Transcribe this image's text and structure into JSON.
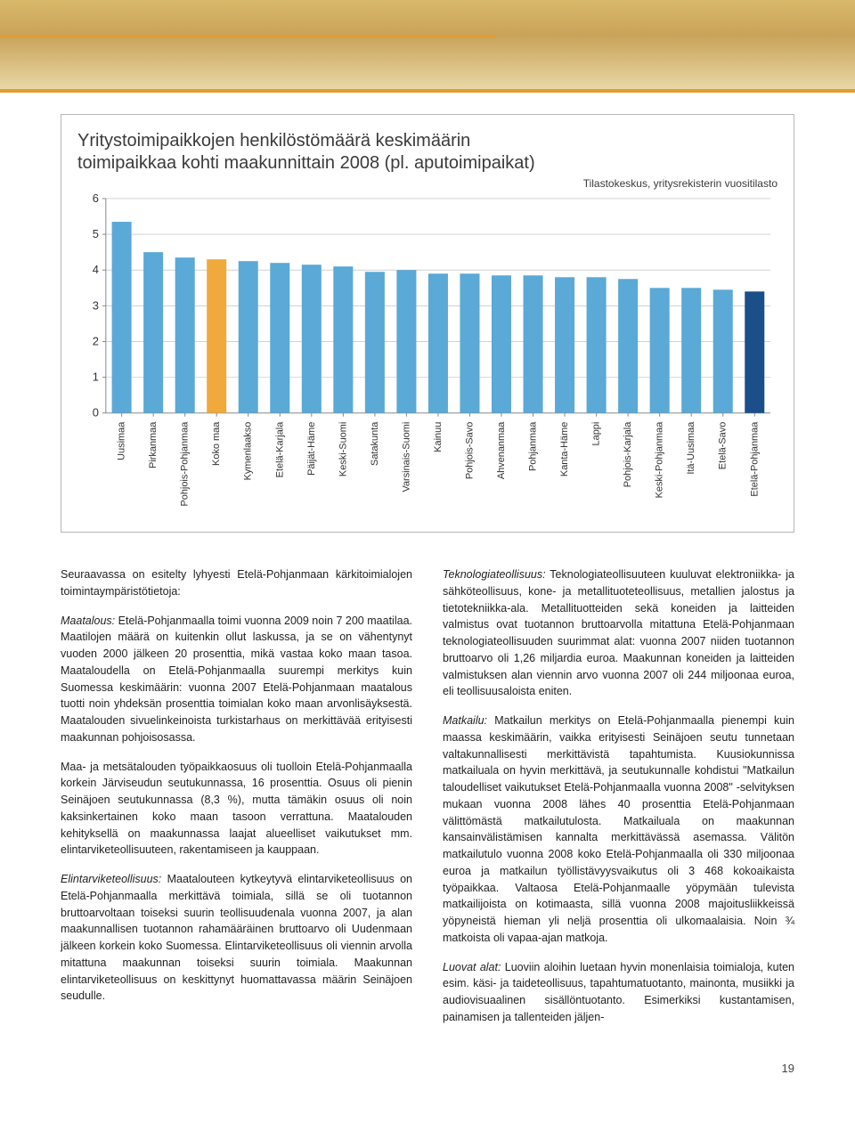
{
  "chart": {
    "type": "bar",
    "title_line1": "Yritystoimipaikkojen henkilöstömäärä keskimäärin",
    "title_line2": "toimipaikkaa kohti maakunnittain 2008 (pl. aputoimipaikat)",
    "source": "Tilastokeskus, yritysrekisterin vuositilasto",
    "ylim": [
      0,
      6
    ],
    "ytick_step": 1,
    "categories": [
      "Uusimaa",
      "Pirkanmaa",
      "Pohjois-Pohjanmaa",
      "Koko maa",
      "Kymenlaakso",
      "Etelä-Karjala",
      "Päijät-Häme",
      "Keski-Suomi",
      "Satakunta",
      "Varsinais-Suomi",
      "Kainuu",
      "Pohjois-Savo",
      "Ahvenanmaa",
      "Pohjanmaa",
      "Kanta-Häme",
      "Lappi",
      "Pohjois-Karjala",
      "Keski-Pohjanmaa",
      "Itä-Uusimaa",
      "Etelä-Savo",
      "Etelä-Pohjanmaa"
    ],
    "values": [
      5.35,
      4.5,
      4.35,
      4.3,
      4.25,
      4.2,
      4.15,
      4.1,
      3.95,
      4.0,
      3.9,
      3.9,
      3.85,
      3.85,
      3.8,
      3.8,
      3.75,
      3.5,
      3.5,
      3.45,
      3.4
    ],
    "bar_colors": [
      "#5aa9d6",
      "#5aa9d6",
      "#5aa9d6",
      "#f0a93c",
      "#5aa9d6",
      "#5aa9d6",
      "#5aa9d6",
      "#5aa9d6",
      "#5aa9d6",
      "#5aa9d6",
      "#5aa9d6",
      "#5aa9d6",
      "#5aa9d6",
      "#5aa9d6",
      "#5aa9d6",
      "#5aa9d6",
      "#5aa9d6",
      "#5aa9d6",
      "#5aa9d6",
      "#5aa9d6",
      "#1a4f8a"
    ],
    "grid_color": "#b7b7b7",
    "axis_color": "#888",
    "background": "#ffffff",
    "bar_width_ratio": 0.62,
    "title_fontsize": 20,
    "label_fontsize": 11
  },
  "text": {
    "left": [
      {
        "html": "Seuraavassa on esitelty lyhyesti Etelä-Pohjanmaan kärkitoimialojen toimintaympäristötietoja:"
      },
      {
        "html": "<em>Maatalous:</em> Etelä-Pohjanmaalla toimi vuonna 2009 noin 7 200 maatilaa. Maatilojen määrä on kuitenkin ollut laskussa, ja se on vähentynyt vuoden 2000 jälkeen 20 prosenttia, mikä vastaa koko maan tasoa. Maataloudella on Etelä-Pohjanmaalla suurempi merkitys kuin Suomessa keskimäärin: vuonna 2007 Etelä-Pohjanmaan maatalous tuotti noin yhdeksän prosenttia toimialan koko maan arvonlisäyksestä. Maatalouden sivuelinkeinoista turkistarhaus on merkittävää erityisesti maakunnan pohjoisosassa."
      },
      {
        "html": "Maa- ja metsätalouden työpaikkaosuus oli tuolloin Etelä-Pohjanmaalla korkein Järviseudun seutukunnassa, 16 prosenttia. Osuus oli pienin Seinäjoen seutukunnassa (8,3 %), mutta tämäkin osuus oli noin kaksinkertainen koko maan tasoon verrattuna. Maatalouden kehityksellä on maakunnassa laajat alueelliset vaikutukset mm. elintarviketeollisuuteen, rakentamiseen ja kauppaan."
      },
      {
        "html": "<em>Elintarviketeollisuus:</em> Maatalouteen kytkeytyvä elintarviketeollisuus on Etelä-Pohjanmaalla merkittävä toimiala, sillä se oli tuotannon bruttoarvoltaan toiseksi suurin teollisuudenala vuonna 2007, ja alan maakunnallisen tuotannon rahamääräinen bruttoarvo oli Uudenmaan jälkeen korkein koko Suomessa. Elintarviketeollisuus oli viennin arvolla mitattuna maakunnan toiseksi suurin toimiala. Maakunnan elintarviketeollisuus on keskittynyt huomattavassa määrin Seinäjoen seudulle."
      }
    ],
    "right": [
      {
        "html": "<em>Teknologiateollisuus:</em> Teknologiateollisuuteen kuuluvat elektroniikka- ja sähköteollisuus, kone- ja metallituoteteollisuus, metallien jalostus ja tietotekniikka-ala. Metallituotteiden sekä koneiden ja laitteiden valmistus ovat tuotannon bruttoarvolla mitattuna Etelä-Pohjanmaan teknologiateollisuuden suurimmat alat: vuonna 2007 niiden tuotannon bruttoarvo oli 1,26 miljardia euroa. Maakunnan koneiden ja laitteiden valmistuksen alan viennin arvo vuonna 2007 oli 244 miljoonaa euroa, eli teollisuusaloista eniten."
      },
      {
        "html": "<em>Matkailu:</em> Matkailun merkitys on Etelä-Pohjanmaalla pienempi kuin maassa keskimäärin, vaikka erityisesti Seinäjoen seutu tunnetaan valtakunnallisesti merkittävistä tapahtumista. Kuusiokunnissa matkailuala on hyvin merkittävä, ja seutukunnalle kohdistui \"Matkailun taloudelliset vaikutukset Etelä-Pohjanmaalla vuonna 2008\" -selvityksen mukaan vuonna 2008 lähes 40 prosenttia Etelä-Pohjanmaan välittömästä matkailutulosta. Matkailuala on maakunnan kansainvälistämisen kannalta merkittävässä asemassa. Välitön matkailutulo vuonna 2008 koko Etelä-Pohjanmaalla oli 330 miljoonaa euroa ja matkailun työllistävyysvaikutus oli 3 468 kokoaikaista työpaikkaa. Valtaosa Etelä-Pohjanmaalle yöpymään tulevista matkailijoista on kotimaasta, sillä vuonna 2008 majoitusliikkeissä yöpyneistä hieman yli neljä prosenttia oli ulkomaalaisia. Noin ¾ matkoista oli vapaa-ajan matkoja."
      },
      {
        "html": "<em>Luovat alat:</em> Luoviin aloihin luetaan hyvin monenlaisia toimialoja, kuten esim. käsi- ja taideteollisuus, tapahtumatuotanto, mainonta, musiikki ja audiovisuaalinen sisällöntuotanto. Esimerkiksi kustantamisen, painamisen ja tallenteiden jäljen-"
      }
    ]
  },
  "page_number": "19"
}
